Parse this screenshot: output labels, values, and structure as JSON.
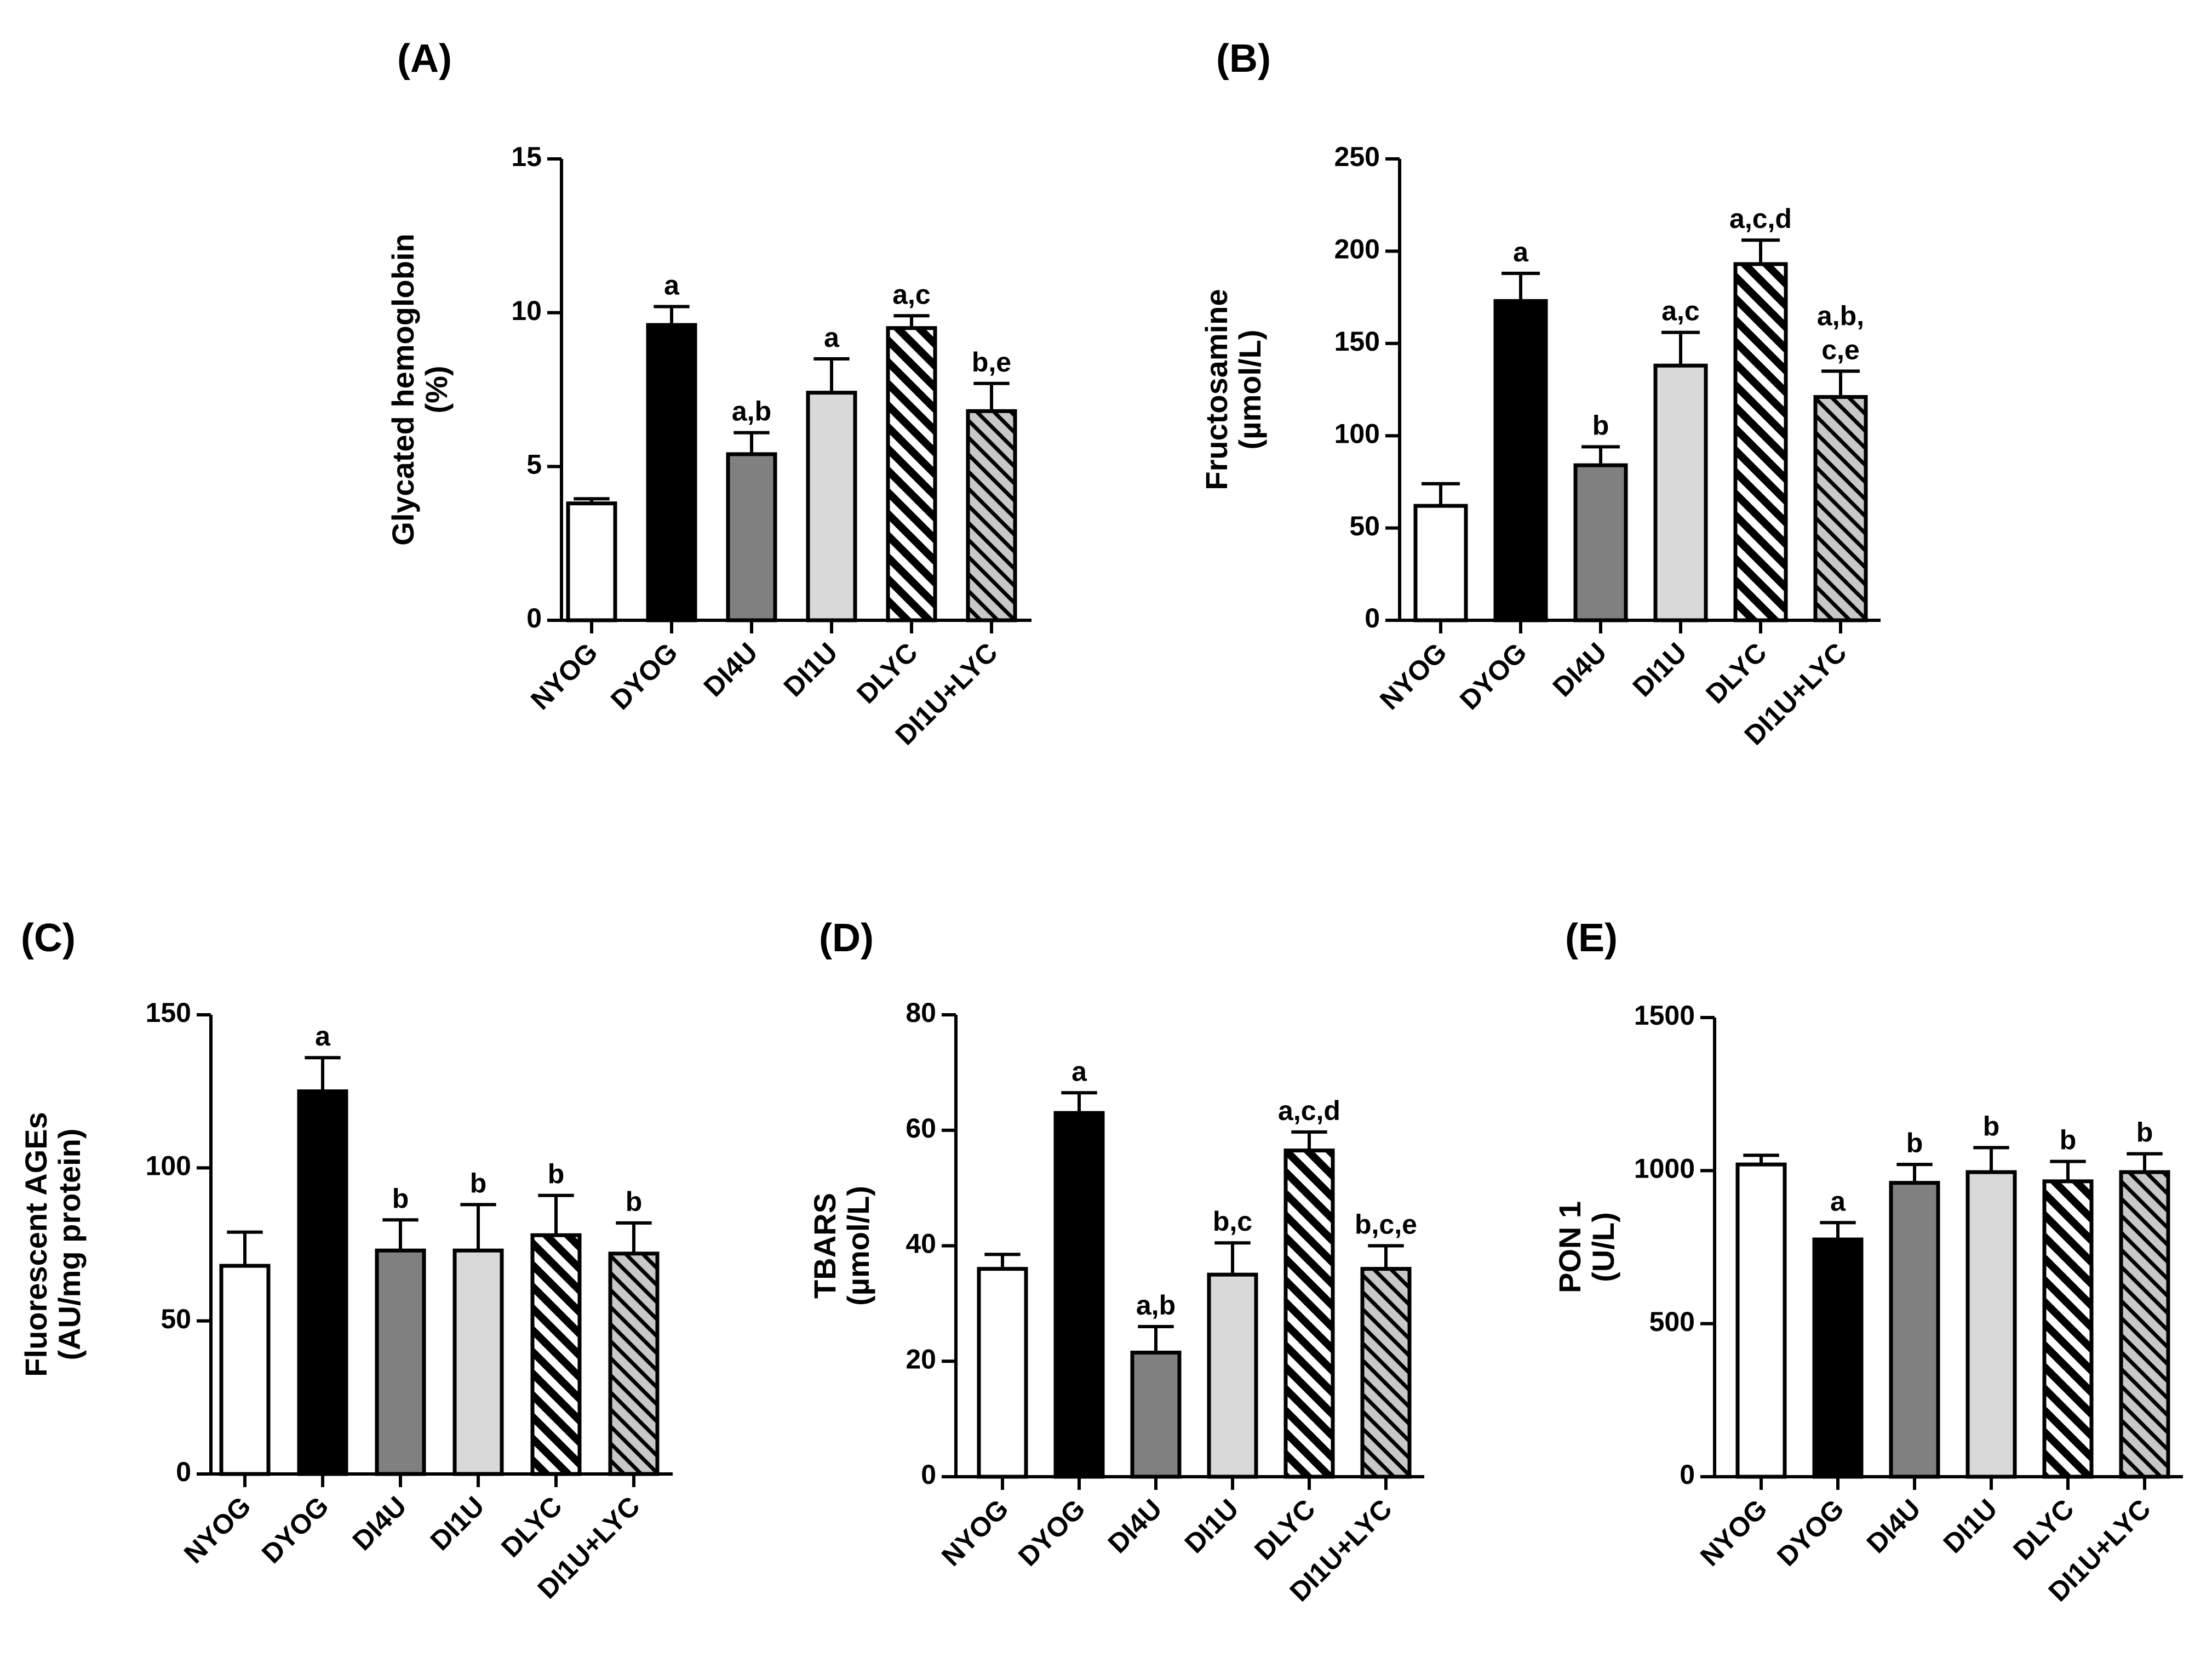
{
  "figure": {
    "colors": {
      "NYOG": "#ffffff",
      "DYOG": "#000000",
      "DI4U": "#808080",
      "DI1U": "#d9d9d9",
      "DLYC": "#ffffff",
      "DI1U+LYC": "#bfbfbf"
    },
    "patterns": {
      "DLYC": "hatch-dense",
      "DI1U+LYC": "hatch-gray"
    }
  },
  "chart_data": [
    {
      "id": "A",
      "panel_label": "(A)",
      "type": "bar",
      "categories": [
        "NYOG",
        "DYOG",
        "DI4U",
        "DI1U",
        "DLYC",
        "DI1U+LYC"
      ],
      "values": [
        3.8,
        9.6,
        5.4,
        7.4,
        9.5,
        6.8
      ],
      "errors": [
        0.15,
        0.6,
        0.7,
        1.1,
        0.4,
        0.9
      ],
      "annotations": [
        "",
        "a",
        "a,b",
        "a",
        "a,c",
        "b,e"
      ],
      "ylabel": [
        "Glycated hemoglobin",
        "(%)"
      ],
      "ylim": [
        0,
        15
      ],
      "yticks": [
        0,
        5,
        10,
        15
      ]
    },
    {
      "id": "B",
      "panel_label": "(B)",
      "type": "bar",
      "categories": [
        "NYOG",
        "DYOG",
        "DI4U",
        "DI1U",
        "DLYC",
        "DI1U+LYC"
      ],
      "values": [
        62,
        173,
        84,
        138,
        193,
        121
      ],
      "errors": [
        12,
        15,
        10,
        18,
        13,
        14
      ],
      "annotations": [
        "",
        "a",
        "b",
        "a,c",
        "a,c,d",
        "a,b,\nc,e"
      ],
      "ylabel": [
        "Fructosamine",
        "(µmol/L)"
      ],
      "ylim": [
        0,
        250
      ],
      "yticks": [
        0,
        50,
        100,
        150,
        200,
        250
      ]
    },
    {
      "id": "C",
      "panel_label": "(C)",
      "type": "bar",
      "categories": [
        "NYOG",
        "DYOG",
        "DI4U",
        "DI1U",
        "DLYC",
        "DI1U+LYC"
      ],
      "values": [
        68,
        125,
        73,
        73,
        78,
        72
      ],
      "errors": [
        11,
        11,
        10,
        15,
        13,
        10
      ],
      "annotations": [
        "",
        "a",
        "b",
        "b",
        "b",
        "b"
      ],
      "ylabel": [
        "Fluorescent AGEs",
        "(AU/mg protein)"
      ],
      "ylim": [
        0,
        150
      ],
      "yticks": [
        0,
        50,
        100,
        150
      ]
    },
    {
      "id": "D",
      "panel_label": "(D)",
      "type": "bar",
      "categories": [
        "NYOG",
        "DYOG",
        "DI4U",
        "DI1U",
        "DLYC",
        "DI1U+LYC"
      ],
      "values": [
        36,
        63,
        21.5,
        35,
        56.5,
        36
      ],
      "errors": [
        2.5,
        3.5,
        4.5,
        5.5,
        3.2,
        4
      ],
      "annotations": [
        "",
        "a",
        "a,b",
        "b,c",
        "a,c,d",
        "b,c,e"
      ],
      "ylabel": [
        "TBARS",
        "(µmol/L)"
      ],
      "ylim": [
        0,
        80
      ],
      "yticks": [
        0,
        20,
        40,
        60,
        80
      ]
    },
    {
      "id": "E",
      "panel_label": "(E)",
      "type": "bar",
      "categories": [
        "NYOG",
        "DYOG",
        "DI4U",
        "DI1U",
        "DLYC",
        "DI1U+LYC"
      ],
      "values": [
        1020,
        775,
        960,
        995,
        965,
        995
      ],
      "errors": [
        30,
        55,
        60,
        80,
        65,
        60
      ],
      "annotations": [
        "",
        "a",
        "b",
        "b",
        "b",
        "b"
      ],
      "ylabel": [
        "PON 1",
        "(U/L)"
      ],
      "ylim": [
        0,
        1500
      ],
      "yticks": [
        0,
        500,
        1000,
        1500
      ]
    }
  ]
}
